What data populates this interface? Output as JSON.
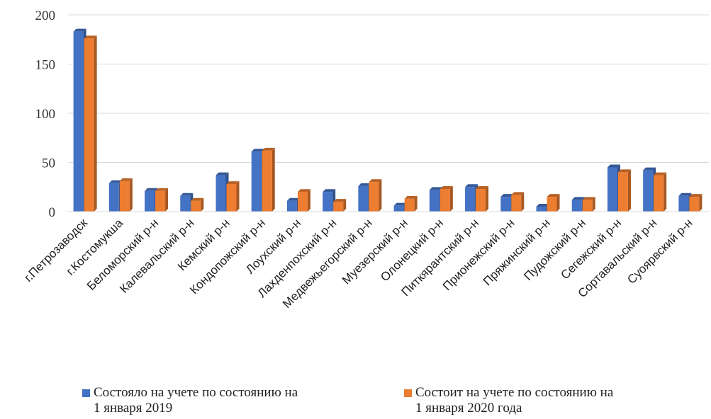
{
  "chart_data": {
    "type": "bar",
    "categories": [
      "г.Петрозаводск",
      "г.Костомукша",
      "Беломорский р-н",
      "Калевальский р-н",
      "Кемский р-н",
      "Кондопожский р-н",
      "Лоухский р-н",
      "Лахденпохский р-н",
      "Медвежьегорский р-н",
      "Муезерский р-н",
      "Олонецкий р-н",
      "Питкярантский р-н",
      "Прионежский р-н",
      "Пряжинский р-н",
      "Пудожский р-н",
      "Сегежский р-н",
      "Сортавальский р-н",
      "Суоярвский р-н"
    ],
    "series": [
      {
        "name_lines": [
          "Состояло на учете по состоянию на",
          "1 января 2019"
        ],
        "color": "#4472C4",
        "values": [
          183,
          29,
          21,
          16,
          37,
          61,
          11,
          20,
          26,
          6,
          22,
          25,
          15,
          5,
          12,
          45,
          42,
          16
        ]
      },
      {
        "name_lines": [
          "Состоит на учете по состоянию на",
          "1 января 2020 года"
        ],
        "color": "#ED7D31",
        "values": [
          176,
          31,
          21,
          11,
          28,
          62,
          20,
          10,
          30,
          13,
          23,
          23,
          17,
          15,
          12,
          40,
          37,
          15
        ]
      }
    ],
    "y_ticks": [
      "0",
      "50",
      "100",
      "150",
      "200"
    ],
    "ylim": [
      0,
      200
    ],
    "grid": true,
    "legend_position": "bottom"
  }
}
